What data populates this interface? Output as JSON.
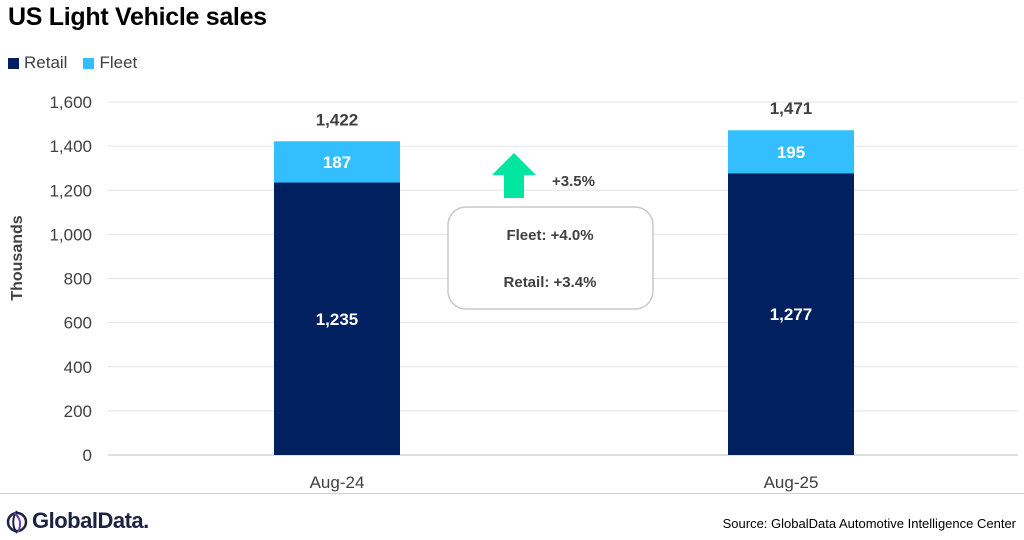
{
  "chart_data": {
    "type": "bar",
    "stacked": true,
    "title": "US Light Vehicle sales",
    "ylabel": "Thousands",
    "xlabel": "",
    "ylim": [
      0,
      1600
    ],
    "yticks": [
      "0",
      "200",
      "400",
      "600",
      "800",
      "1,000",
      "1,200",
      "1,400",
      "1,600"
    ],
    "categories": [
      "Aug-24",
      "Aug-25"
    ],
    "series": [
      {
        "name": "Retail",
        "color": "#002060",
        "values": [
          1235,
          1277
        ],
        "labels": [
          "1,235",
          "1,277"
        ]
      },
      {
        "name": "Fleet",
        "color": "#33BFFF",
        "values": [
          187,
          195
        ],
        "labels": [
          "187",
          "195"
        ]
      }
    ],
    "totals": [
      "1,422",
      "1,471"
    ],
    "legend_position": "top-left",
    "grid": true
  },
  "annotation": {
    "change_total": "+3.5%",
    "arrow_color": "#00E5A0",
    "fleet_change": "Fleet: +4.0%",
    "retail_change": "Retail: +3.4%"
  },
  "footer": {
    "logo_text": "GlobalData.",
    "source": "Source: GlobalData Automotive Intelligence Center"
  }
}
